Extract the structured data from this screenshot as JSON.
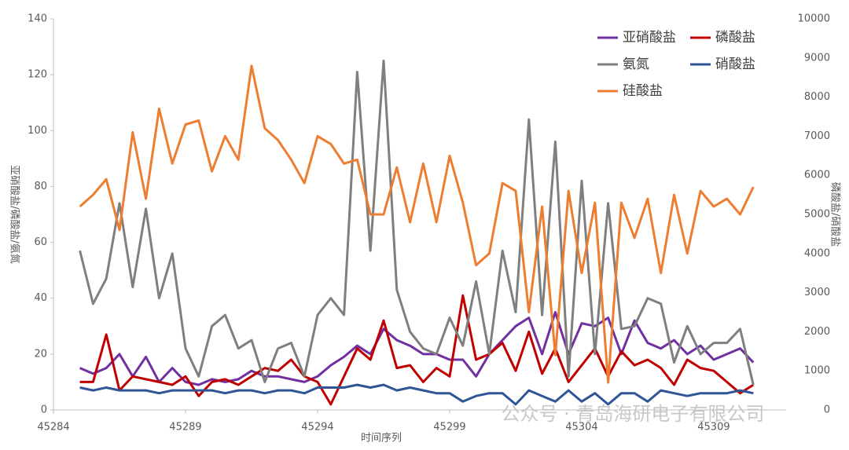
{
  "chart_data": {
    "type": "line",
    "xlabel": "时间序列",
    "ylabel": "亚硝酸盐/磷酸盐/氨氮",
    "y2label": "磷酸盐/硝酸盐",
    "annotation": "公众号 · 青岛海研电子有限公司",
    "x": [
      45285,
      45285.5,
      45286,
      45286.5,
      45287,
      45287.5,
      45288,
      45288.5,
      45289,
      45289.5,
      45290,
      45290.5,
      45291,
      45291.5,
      45292,
      45292.5,
      45293,
      45293.5,
      45294,
      45294.5,
      45295,
      45295.5,
      45296,
      45296.5,
      45297,
      45297.5,
      45298,
      45298.5,
      45299,
      45299.5,
      45300,
      45300.5,
      45301,
      45301.5,
      45302,
      45302.5,
      45303,
      45303.5,
      45304,
      45304.5,
      45305,
      45305.5,
      45306,
      45306.5,
      45307,
      45307.5,
      45308,
      45308.5,
      45309,
      45309.5,
      45310,
      45310.5
    ],
    "xlim": [
      45284,
      45311.74
    ],
    "xticks": [
      45284,
      45289,
      45294,
      45299,
      45304,
      45309
    ],
    "ylim": [
      0,
      140
    ],
    "yticks": [
      0,
      20,
      40,
      60,
      80,
      100,
      120,
      140
    ],
    "y2lim": [
      0,
      10000
    ],
    "y2ticks": [
      0,
      1000,
      2000,
      3000,
      4000,
      5000,
      6000,
      7000,
      8000,
      9000,
      10000
    ],
    "grid": false,
    "legend": "upper right",
    "series": [
      {
        "name": "亚硝酸盐",
        "color": "#7030a0",
        "values": [
          15,
          13,
          15,
          20,
          12,
          19,
          10,
          15,
          10,
          9,
          11,
          10,
          11,
          14,
          12,
          12,
          11,
          10,
          12,
          16,
          19,
          23,
          20,
          29,
          25,
          23,
          20,
          20,
          18,
          18,
          12,
          20,
          25,
          30,
          33,
          20,
          35,
          20,
          31,
          30,
          33,
          20,
          32,
          24,
          22,
          25,
          20,
          23,
          18,
          20,
          22,
          17
        ]
      },
      {
        "name": "磷酸盐",
        "color": "#c00000",
        "values": [
          10,
          10,
          27,
          7,
          12,
          11,
          10,
          9,
          12,
          5,
          10,
          11,
          9,
          12,
          15,
          14,
          18,
          12,
          10,
          2,
          12,
          22,
          18,
          32,
          15,
          16,
          10,
          15,
          12,
          41,
          18,
          20,
          24,
          14,
          28,
          13,
          22,
          10,
          16,
          22,
          12,
          21,
          16,
          18,
          15,
          9,
          18,
          15,
          14,
          10,
          6,
          9
        ]
      },
      {
        "name": "氨氮",
        "color": "#7f7f7f",
        "values": [
          57,
          38,
          47,
          74,
          44,
          72,
          40,
          56,
          22,
          12,
          30,
          34,
          22,
          25,
          10,
          22,
          24,
          12,
          34,
          40,
          34,
          121,
          57,
          125,
          43,
          28,
          22,
          20,
          33,
          23,
          46,
          20,
          57,
          35,
          104,
          34,
          96,
          12,
          82,
          20,
          74,
          29,
          30,
          40,
          38,
          17,
          30,
          20,
          24,
          24,
          29,
          9
        ]
      },
      {
        "name": "硝酸盐",
        "color": "#2f5597",
        "values": [
          8,
          7,
          8,
          7,
          7,
          7,
          6,
          7,
          7,
          7,
          7,
          6,
          7,
          7,
          6,
          7,
          7,
          6,
          8,
          8,
          8,
          9,
          8,
          9,
          7,
          8,
          7,
          6,
          6,
          3,
          5,
          6,
          6,
          2,
          7,
          5,
          3,
          7,
          3,
          6,
          2,
          6,
          6,
          3,
          7,
          6,
          5,
          6,
          6,
          6,
          7,
          6
        ]
      },
      {
        "name": "硅酸盐",
        "color": "#ed7d31",
        "axis": "y2",
        "values": [
          5200,
          5500,
          5900,
          4600,
          7100,
          5400,
          7700,
          6300,
          7300,
          7400,
          6100,
          7000,
          6400,
          8800,
          7200,
          6900,
          6400,
          5800,
          7000,
          6800,
          6300,
          6400,
          5000,
          5000,
          6200,
          4800,
          6300,
          4800,
          6500,
          5300,
          3700,
          4000,
          5800,
          5600,
          2500,
          5200,
          1400,
          5600,
          3500,
          5300,
          700,
          5300,
          4400,
          5400,
          3500,
          5500,
          4000,
          5600,
          5200,
          5400,
          5000,
          5700
        ]
      }
    ]
  }
}
